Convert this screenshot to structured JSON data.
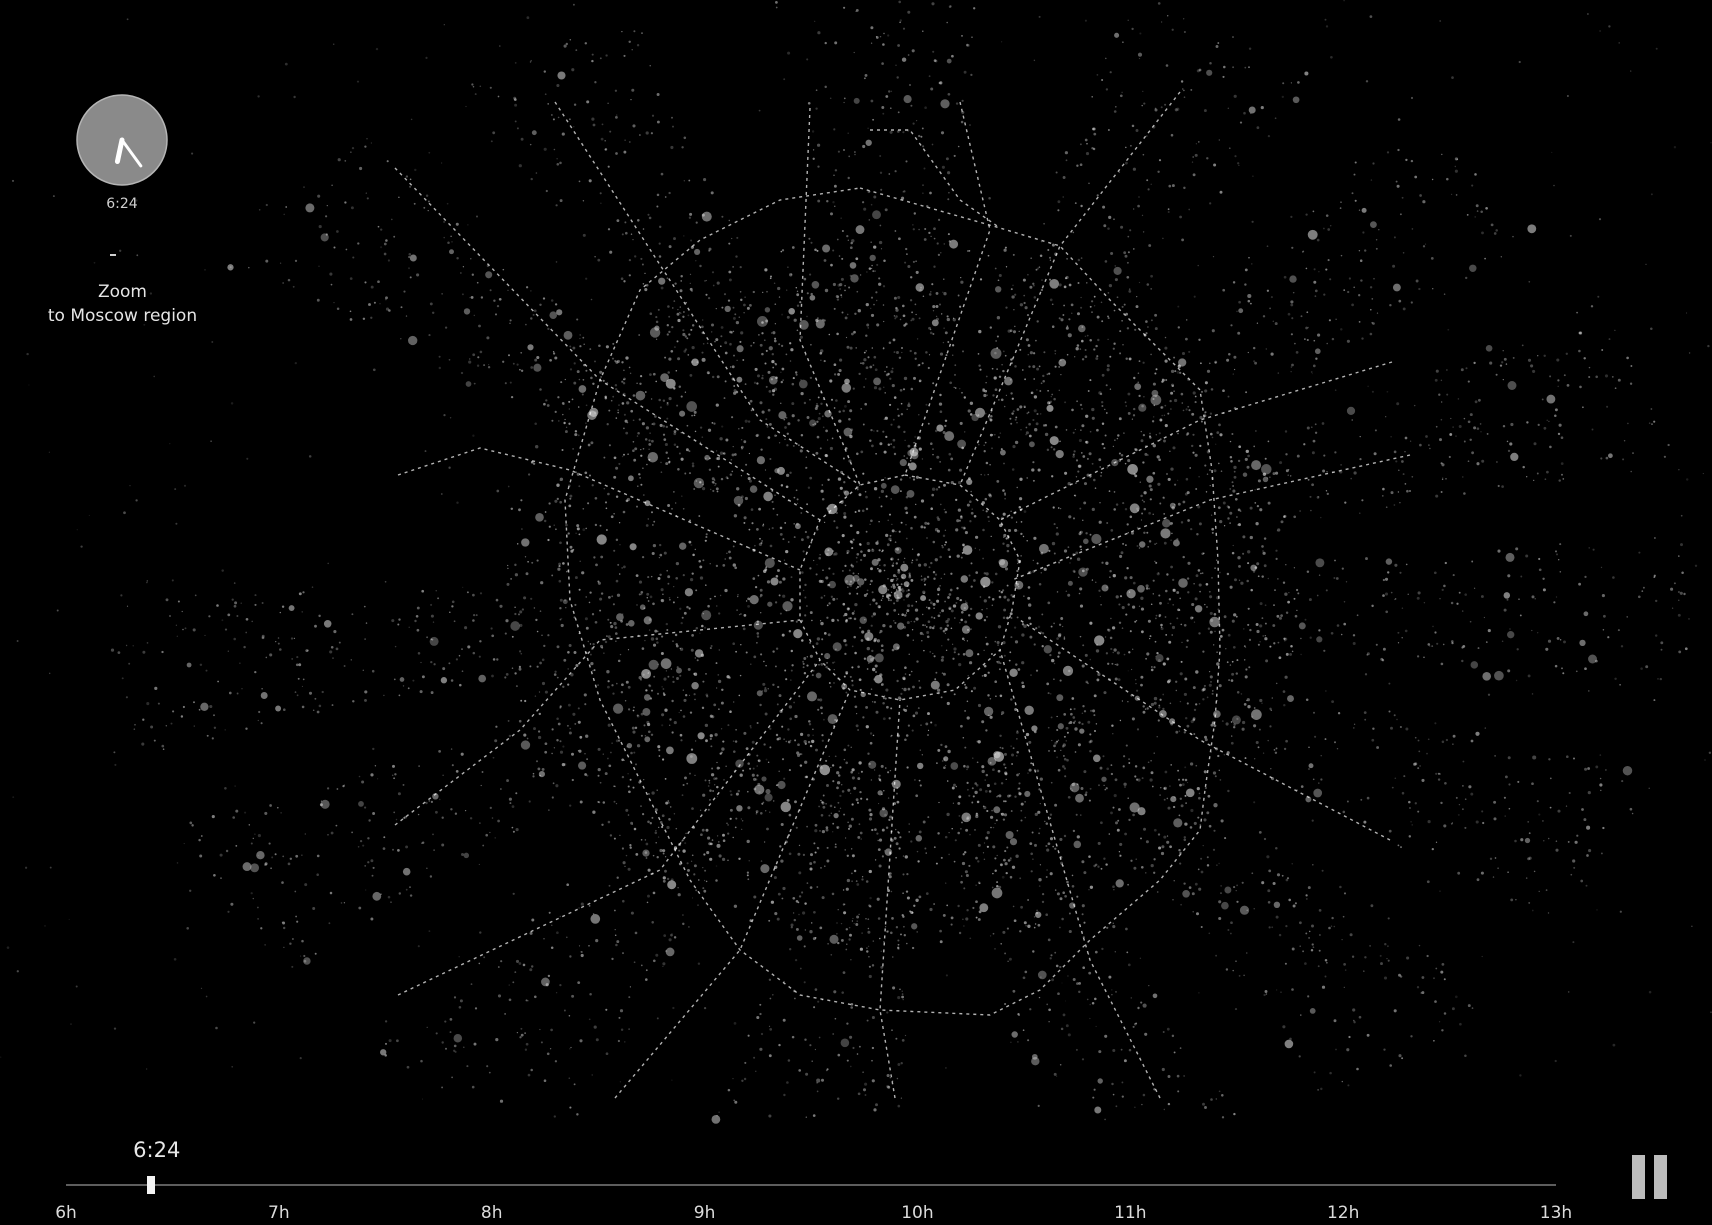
{
  "clock": {
    "time_label": "6:24",
    "hour": 6,
    "minute": 24
  },
  "zoom": {
    "dash": "-",
    "label_line1": "Zoom",
    "label_line2": "to Moscow region"
  },
  "timeline": {
    "current_time": "6:24",
    "start_hour": 6,
    "end_hour": 13,
    "position_hours": 6.4,
    "ticks": [
      "6h",
      "7h",
      "8h",
      "9h",
      "10h",
      "11h",
      "12h",
      "13h"
    ]
  },
  "controls": {
    "playback_icon": "pause-icon"
  },
  "colors": {
    "background": "#000000",
    "points": "#d8d8d8",
    "lines": "#ffffff",
    "clock_face": "#8a8a8a"
  }
}
